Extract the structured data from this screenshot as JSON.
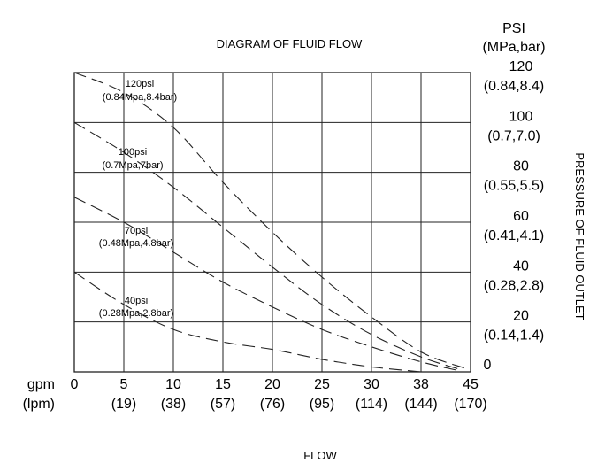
{
  "chart_data": {
    "type": "line",
    "title": "DIAGRAM OF FLUID FLOW",
    "xlabel": "FLOW",
    "ylabel": "PRESSURE OF FLUID OUTLET",
    "x_unit": "gpm",
    "x_unit_alt": "(lpm)",
    "y_unit": "PSI",
    "y_unit_alt": "(MPa,bar)",
    "x_ticks": [
      {
        "value": 0,
        "label": "0",
        "alt": ""
      },
      {
        "value": 5,
        "label": "5",
        "alt": "(19)"
      },
      {
        "value": 10,
        "label": "10",
        "alt": "(38)"
      },
      {
        "value": 15,
        "label": "15",
        "alt": "(57)"
      },
      {
        "value": 20,
        "label": "20",
        "alt": "(76)"
      },
      {
        "value": 25,
        "label": "25",
        "alt": "(95)"
      },
      {
        "value": 30,
        "label": "30",
        "alt": "(114)"
      },
      {
        "value": 38,
        "label": "38",
        "alt": "(144)"
      },
      {
        "value": 45,
        "label": "45",
        "alt": "(170)"
      }
    ],
    "y_ticks": [
      {
        "value": 120,
        "label": "120",
        "alt": "(0.84,8.4)"
      },
      {
        "value": 100,
        "label": "100",
        "alt": "(0.7,7.0)"
      },
      {
        "value": 80,
        "label": "80",
        "alt": "(0.55,5.5)"
      },
      {
        "value": 60,
        "label": "60",
        "alt": "(0.41,4.1)"
      },
      {
        "value": 40,
        "label": "40",
        "alt": "(0.28,2.8)"
      },
      {
        "value": 20,
        "label": "20",
        "alt": "(0.14,1.4)"
      },
      {
        "value": 0,
        "label": "0",
        "alt": ""
      }
    ],
    "xlim": [
      0,
      40
    ],
    "ylim": [
      0,
      120
    ],
    "grid": true,
    "series": [
      {
        "name": "120psi",
        "label_line1": "120psi",
        "label_line2": "(0.84Mpa,8.4bar)",
        "x": [
          0,
          5,
          10,
          15,
          20,
          25,
          30,
          35,
          39.4
        ],
        "y": [
          120,
          112,
          98,
          76,
          56,
          38,
          22,
          8,
          1.5
        ]
      },
      {
        "name": "100psi",
        "label_line1": "100psi",
        "label_line2": "(0.7Mpa,7bar)",
        "x": [
          0,
          5,
          10,
          15,
          20,
          25,
          30,
          35,
          38.9
        ],
        "y": [
          100,
          88,
          74,
          58,
          42,
          27,
          15,
          6,
          1
        ]
      },
      {
        "name": "70psi",
        "label_line1": "70psi",
        "label_line2": "(0.48Mpa,4.8bar)",
        "x": [
          0,
          5,
          10,
          15,
          20,
          25,
          30,
          35,
          38.8
        ],
        "y": [
          70,
          60,
          48,
          36,
          26,
          17,
          10,
          4,
          0.5
        ]
      },
      {
        "name": "40psi",
        "label_line1": "40psi",
        "label_line2": "(0.28Mpa,2.8bar)",
        "x": [
          0,
          5,
          10,
          15,
          20,
          25,
          30,
          35
        ],
        "y": [
          40,
          27,
          17,
          12,
          9,
          5,
          2,
          0
        ]
      }
    ]
  }
}
